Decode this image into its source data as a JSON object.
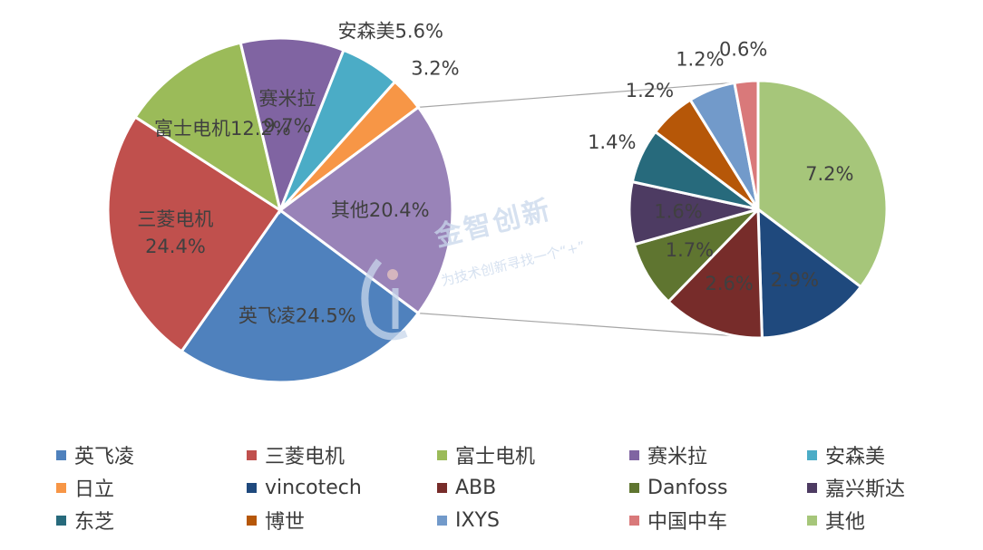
{
  "chart_data": [
    {
      "type": "pie",
      "role": "main",
      "slices": [
        {
          "name": "英飞凌",
          "value": 24.5,
          "label": "英飞凌24.5%",
          "color": "#4f81bd"
        },
        {
          "name": "三菱电机",
          "value": 24.4,
          "label": "三菱电机\n24.4%",
          "color": "#c0504d"
        },
        {
          "name": "富士电机",
          "value": 12.2,
          "label": "富士电机12.2%",
          "color": "#9bbb59"
        },
        {
          "name": "赛米拉",
          "value": 9.7,
          "label": "赛米拉\n9.7%",
          "color": "#8064a2"
        },
        {
          "name": "安森美",
          "value": 5.6,
          "label": "安森美5.6%",
          "color": "#4bacc6"
        },
        {
          "name": "日立",
          "value": 3.2,
          "label": "3.2%",
          "color": "#f79646"
        },
        {
          "name": "其他",
          "value": 20.4,
          "label": "其他20.4%",
          "color": "#9983b8"
        }
      ]
    },
    {
      "type": "pie",
      "role": "breakdown-of-其他",
      "slices": [
        {
          "name": "vincotech",
          "value": 2.9,
          "label": "2.9%",
          "color": "#1f497d"
        },
        {
          "name": "ABB",
          "value": 2.6,
          "label": "2.6%",
          "color": "#772c2a"
        },
        {
          "name": "Danfoss",
          "value": 1.7,
          "label": "1.7%",
          "color": "#5f7530"
        },
        {
          "name": "嘉兴斯达",
          "value": 1.6,
          "label": "1.6%",
          "color": "#4d3b62"
        },
        {
          "name": "东芝",
          "value": 1.4,
          "label": "1.4%",
          "color": "#276a7c"
        },
        {
          "name": "博世",
          "value": 1.2,
          "label": "1.2%",
          "color": "#b65708"
        },
        {
          "name": "IXYS",
          "value": 1.2,
          "label": "1.2%",
          "color": "#729aca"
        },
        {
          "name": "中国中车",
          "value": 0.6,
          "label": "0.6%",
          "color": "#d9797a"
        },
        {
          "name": "其他",
          "value": 7.2,
          "label": "7.2%",
          "color": "#a6c67a"
        }
      ]
    }
  ],
  "legend": [
    {
      "name": "英飞凌",
      "color": "#4f81bd"
    },
    {
      "name": "三菱电机",
      "color": "#c0504d"
    },
    {
      "name": "富士电机",
      "color": "#9bbb59"
    },
    {
      "name": "赛米拉",
      "color": "#8064a2"
    },
    {
      "name": "安森美",
      "color": "#4bacc6"
    },
    {
      "name": "日立",
      "color": "#f79646"
    },
    {
      "name": "vincotech",
      "color": "#1f497d"
    },
    {
      "name": "ABB",
      "color": "#772c2a"
    },
    {
      "name": "Danfoss",
      "color": "#5f7530"
    },
    {
      "name": "嘉兴斯达",
      "color": "#4d3b62"
    },
    {
      "name": "东芝",
      "color": "#276a7c"
    },
    {
      "name": "博世",
      "color": "#b65708"
    },
    {
      "name": "IXYS",
      "color": "#729aca"
    },
    {
      "name": "中国中车",
      "color": "#d9797a"
    },
    {
      "name": "其他",
      "color": "#a6c67a"
    }
  ],
  "watermark": {
    "title": "金智创新",
    "subtitle": "为技术创新寻找一个“+”"
  }
}
